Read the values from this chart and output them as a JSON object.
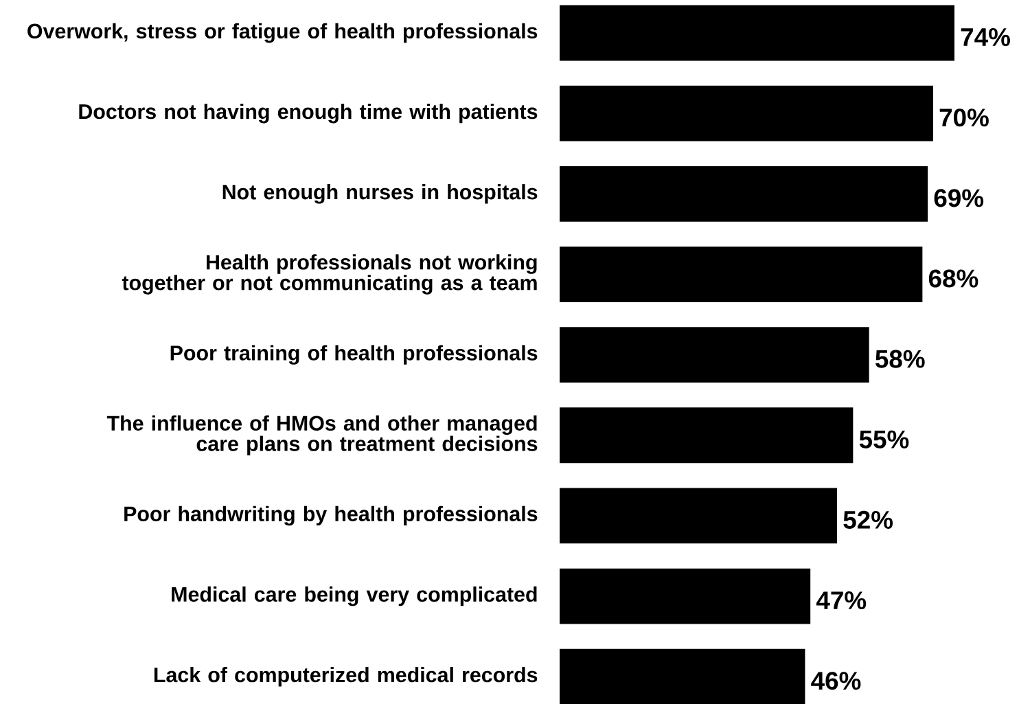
{
  "chart_data": {
    "type": "bar",
    "orientation": "horizontal",
    "categories": [
      "Overwork, stress or fatigue of health professionals",
      "Doctors not having enough time with patients",
      "Not enough nurses in hospitals",
      "Health professionals not working together or not communicating as a team",
      "Poor training of health professionals",
      "The influence of HMOs and other managed care plans on treatment decisions",
      "Poor handwriting by health professionals",
      "Medical care being very complicated",
      "Lack of computerized medical records"
    ],
    "values": [
      74,
      70,
      69,
      68,
      58,
      55,
      52,
      47,
      46
    ],
    "value_labels": [
      "74%",
      "70%",
      "69%",
      "68%",
      "58%",
      "55%",
      "52%",
      "47%",
      "46%"
    ],
    "color": "#000000"
  }
}
